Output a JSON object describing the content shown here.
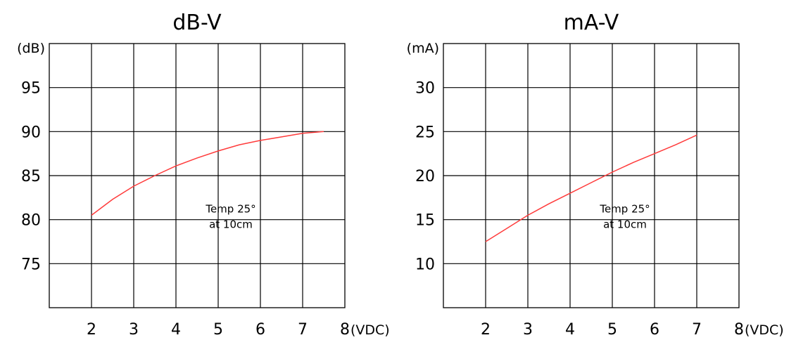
{
  "chart_data": [
    {
      "type": "line",
      "title": "dB-V",
      "y_unit": "(dB)",
      "x_unit": "(VDC)",
      "x_ticks": [
        "2",
        "3",
        "4",
        "5",
        "6",
        "7",
        "8"
      ],
      "y_ticks": [
        "95",
        "90",
        "85",
        "80",
        "75"
      ],
      "xlim": [
        1,
        8
      ],
      "ylim": [
        70,
        100
      ],
      "annotation": [
        "Temp 25°",
        "at 10cm"
      ],
      "line_color": "#ff3b3b",
      "grid": true,
      "series": [
        {
          "x": [
            2,
            2.5,
            3,
            3.5,
            4,
            4.5,
            5,
            5.5,
            6,
            6.5,
            7,
            7.5
          ],
          "y": [
            80.5,
            82.3,
            83.8,
            85.0,
            86.1,
            87.0,
            87.8,
            88.5,
            89.0,
            89.4,
            89.8,
            90.0
          ]
        }
      ]
    },
    {
      "type": "line",
      "title": "mA-V",
      "y_unit": "(mA)",
      "x_unit": "(VDC)",
      "x_ticks": [
        "2",
        "3",
        "4",
        "5",
        "6",
        "7",
        "8"
      ],
      "y_ticks": [
        "30",
        "25",
        "20",
        "15",
        "10"
      ],
      "xlim": [
        1,
        8
      ],
      "ylim": [
        5,
        35
      ],
      "annotation": [
        "Temp 25°",
        "at 10cm"
      ],
      "line_color": "#ff3b3b",
      "grid": true,
      "series": [
        {
          "x": [
            2,
            2.5,
            3,
            3.5,
            4,
            4.5,
            5,
            5.5,
            6,
            6.5,
            7
          ],
          "y": [
            12.5,
            14.0,
            15.5,
            16.8,
            18.0,
            19.2,
            20.4,
            21.5,
            22.5,
            23.5,
            24.6
          ]
        }
      ]
    }
  ]
}
